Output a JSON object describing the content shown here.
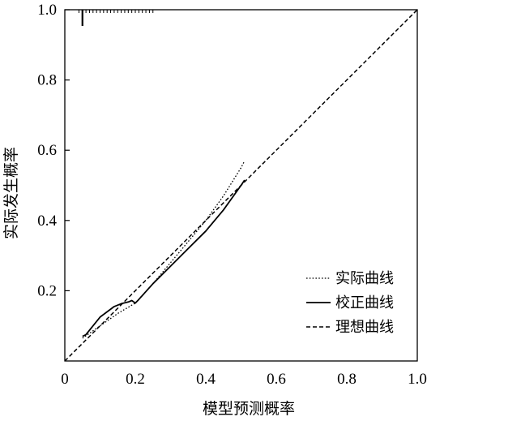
{
  "chart_data": {
    "type": "line",
    "xlabel": "模型预测概率",
    "ylabel": "实际发生概率",
    "xlim": [
      0,
      1.0
    ],
    "ylim": [
      0,
      1.0
    ],
    "x_ticks": [
      "0",
      "0.2",
      "0.4",
      "0.6",
      "0.8",
      "1.0"
    ],
    "y_ticks": [
      "0.2",
      "0.4",
      "0.6",
      "0.8",
      "1.0"
    ],
    "grid": false,
    "legend_position": "bottom-right",
    "series": [
      {
        "name": "实际曲线",
        "style": "dotted",
        "x": [
          0.05,
          0.1,
          0.15,
          0.2,
          0.25,
          0.3,
          0.35,
          0.4,
          0.45,
          0.5,
          0.51
        ],
        "y": [
          0.065,
          0.1,
          0.135,
          0.165,
          0.22,
          0.28,
          0.34,
          0.4,
          0.47,
          0.55,
          0.57
        ]
      },
      {
        "name": "校正曲线",
        "style": "solid",
        "x": [
          0.05,
          0.06,
          0.08,
          0.1,
          0.12,
          0.14,
          0.16,
          0.18,
          0.19,
          0.2,
          0.21,
          0.25,
          0.3,
          0.35,
          0.4,
          0.45,
          0.5,
          0.51
        ],
        "y": [
          0.07,
          0.075,
          0.1,
          0.125,
          0.14,
          0.155,
          0.163,
          0.168,
          0.172,
          0.165,
          0.175,
          0.22,
          0.27,
          0.32,
          0.37,
          0.43,
          0.5,
          0.515
        ]
      },
      {
        "name": "理想曲线",
        "style": "dashed",
        "x": [
          0,
          1.0
        ],
        "y": [
          0,
          1.0
        ]
      }
    ],
    "rug_top": [
      0.04,
      0.05,
      0.06,
      0.07,
      0.08,
      0.09,
      0.1,
      0.11,
      0.12,
      0.13,
      0.14,
      0.15,
      0.16,
      0.17,
      0.18,
      0.19,
      0.2,
      0.21,
      0.22,
      0.23,
      0.24,
      0.25
    ],
    "rug_tall": [
      0.05
    ]
  }
}
